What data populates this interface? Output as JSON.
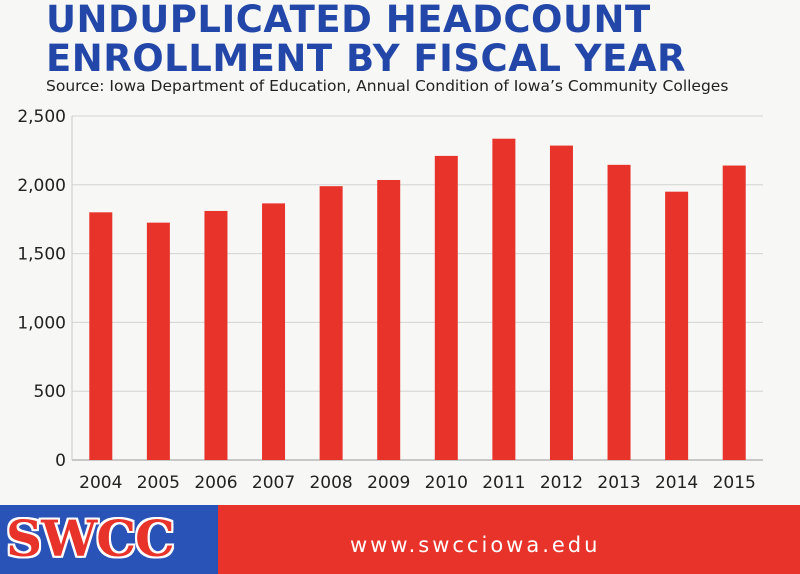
{
  "header": {
    "title_line1": "UNDUPLICATED HEADCOUNT",
    "title_line2": "ENROLLMENT BY FISCAL YEAR",
    "source": "Source:  Iowa Department of Education, Annual Condition of Iowa’s Community Colleges"
  },
  "footer": {
    "logo_text": "SWCC",
    "url": "www.swcciowa.edu"
  },
  "colors": {
    "bar": "#e8332a",
    "title": "#2347a8",
    "footer_bg": "#e8332a",
    "logo_bg": "#2a53b8"
  },
  "chart_data": {
    "type": "bar",
    "title": "",
    "xlabel": "",
    "ylabel": "",
    "categories": [
      "2004",
      "2005",
      "2006",
      "2007",
      "2008",
      "2009",
      "2010",
      "2011",
      "2012",
      "2013",
      "2014",
      "2015"
    ],
    "values": [
      1800,
      1725,
      1810,
      1865,
      1990,
      2035,
      2210,
      2335,
      2285,
      2145,
      1950,
      2140
    ],
    "ylim": [
      0,
      2500
    ],
    "yticks": [
      0,
      500,
      1000,
      1500,
      2000,
      2500
    ],
    "ytick_labels": [
      "0",
      "500",
      "1,000",
      "1,500",
      "2,000",
      "2,500"
    ],
    "grid": true,
    "legend": "none"
  }
}
